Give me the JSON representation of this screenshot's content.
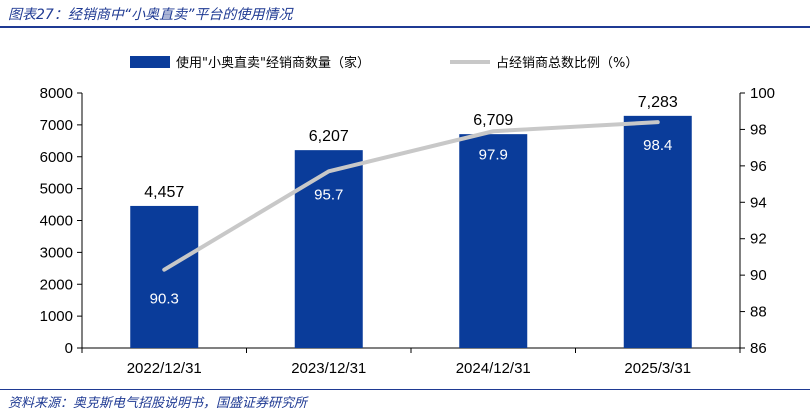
{
  "title": "图表27：经销商中“小奥直卖”平台的使用情况",
  "source": "资料来源：奥克斯电气招股说明书，国盛证券研究所",
  "colors": {
    "bar": "#0a3c9a",
    "line": "#c8c8c8",
    "accent": "#1f3a93"
  },
  "chart_data": {
    "type": "bar",
    "categories": [
      "2022/12/31",
      "2023/12/31",
      "2024/12/31",
      "2025/3/31"
    ],
    "series": [
      {
        "name": "使用\"小奥直卖\"经销商数量（家）",
        "type": "bar",
        "axis": "left",
        "values": [
          4457,
          6207,
          6709,
          7283
        ],
        "labels": [
          "4,457",
          "6,207",
          "6,709",
          "7,283"
        ]
      },
      {
        "name": "占经销商总数比例（%）",
        "type": "line",
        "axis": "right",
        "values": [
          90.3,
          95.7,
          97.9,
          98.4
        ],
        "labels": [
          "90.3",
          "95.7",
          "97.9",
          "98.4"
        ]
      }
    ],
    "y_left": {
      "range": [
        0,
        8000
      ],
      "ticks": [
        "0",
        "1000",
        "2000",
        "3000",
        "4000",
        "5000",
        "6000",
        "7000",
        "8000"
      ]
    },
    "y_right": {
      "range": [
        86,
        100
      ],
      "ticks": [
        "86",
        "88",
        "90",
        "92",
        "94",
        "96",
        "98",
        "100"
      ]
    },
    "legend_position": "top",
    "grid": false
  }
}
